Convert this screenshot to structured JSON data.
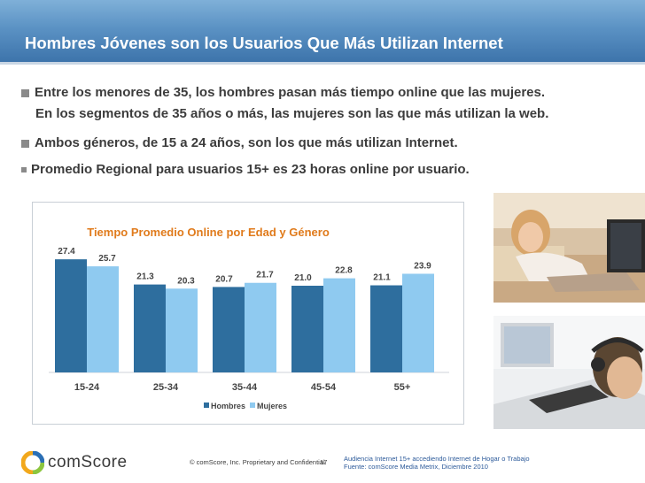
{
  "slide": {
    "title": "Hombres Jóvenes son los Usuarios Que Más Utilizan Internet",
    "bullets": [
      "Entre los menores de 35, los hombres pasan más tiempo online que las mujeres.",
      "En los segmentos de 35 años o más, las mujeres son las que más utilizan la web.",
      "Ambos géneros, de 15 a 24 años, son los que más utilizan Internet.",
      "Promedio Regional para usuarios 15+ es 23 horas online por usuario."
    ]
  },
  "chart_data": {
    "type": "bar",
    "title": "Tiempo Promedio Online por Edad y Género",
    "categories": [
      "15-24",
      "25-34",
      "35-44",
      "45-54",
      "55+"
    ],
    "series": [
      {
        "name": "Hombres",
        "values": [
          27.4,
          21.3,
          20.7,
          21.0,
          21.1
        ],
        "color": "#2e6e9e"
      },
      {
        "name": "Mujeres",
        "values": [
          25.7,
          20.3,
          21.7,
          22.8,
          23.9
        ],
        "color": "#8fcaf0"
      }
    ],
    "legend": "bottom",
    "grid": false,
    "ylim": [
      0,
      30
    ]
  },
  "footer": {
    "logo": "comScore",
    "copyright": "© comScore, Inc.  Proprietary and Confidential.",
    "page": "17",
    "source_line1": "Audiencia Internet 15+  accediendo Internet de Hogar o Trabajo",
    "source_line2": "Fuente:  comScore Media Metrix, Diciembre 2010"
  },
  "colors": {
    "header": "#4a84bb",
    "chart_title": "#e07b1c",
    "hombres": "#2e6e9e",
    "mujeres": "#8fcaf0"
  }
}
